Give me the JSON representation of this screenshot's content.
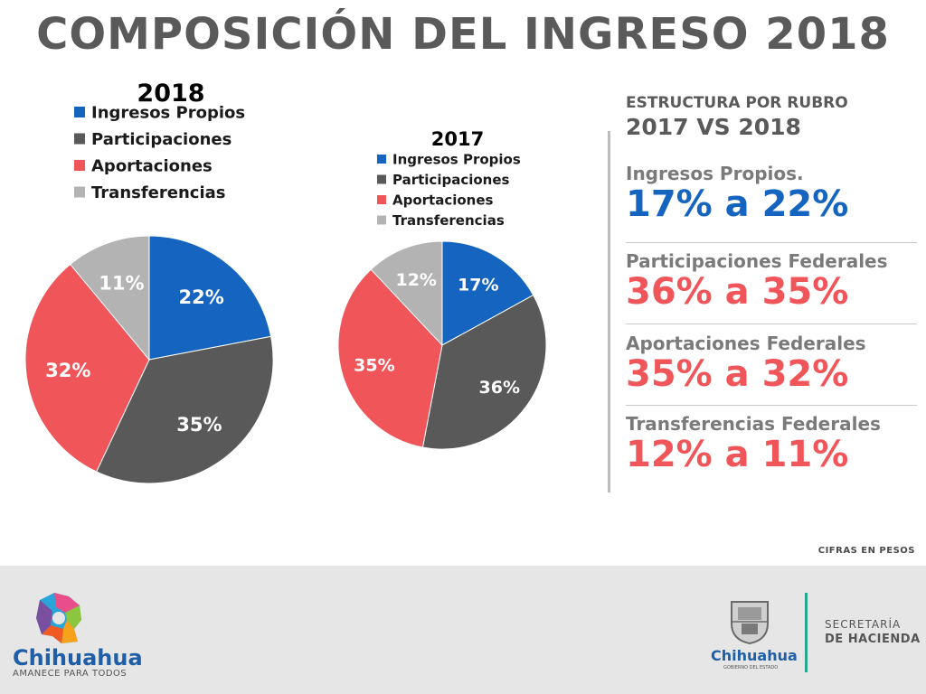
{
  "title": "COMPOSICIÓN DEL INGRESO 2018",
  "colors": {
    "propios": "#1565c0",
    "participaciones": "#595959",
    "aportaciones": "#f0555a",
    "transferencias": "#b3b3b3",
    "accent_blue": "#1565c0",
    "accent_red": "#f0555a"
  },
  "chart_data": [
    {
      "type": "pie",
      "title": "2018",
      "categories": [
        "Ingresos Propios",
        "Participaciones",
        "Aportaciones",
        "Transferencias"
      ],
      "values": [
        22,
        35,
        32,
        11
      ],
      "labels": [
        "22%",
        "35%",
        "32%",
        "11%"
      ],
      "legend": "top-left"
    },
    {
      "type": "pie",
      "title": "2017",
      "categories": [
        "Ingresos Propios",
        "Participaciones",
        "Aportaciones",
        "Transferencias"
      ],
      "values": [
        17,
        36,
        35,
        12
      ],
      "labels": [
        "17%",
        "36%",
        "35%",
        "12%"
      ],
      "legend": "top-left"
    }
  ],
  "rubro": {
    "heading": "ESTRUCTURA POR RUBRO",
    "subheading": "2017 VS 2018",
    "items": [
      {
        "label": "Ingresos Propios.",
        "value": "17% a 22%"
      },
      {
        "label": "Participaciones Federales",
        "value": "36% a 35%"
      },
      {
        "label": "Aportaciones Federales",
        "value": "35% a 32%"
      },
      {
        "label": "Transferencias Federales",
        "value": "12% a 11%"
      }
    ]
  },
  "note": "CIFRAS EN PESOS",
  "footer": {
    "left_logo_text": "Chihuahua",
    "left_logo_sub": "AMANECE PARA TODOS",
    "right_logo_text": "Chihuahua",
    "right_logo_sub": "GOBIERNO DEL ESTADO",
    "secretaria": "SECRETARÍA",
    "hacienda": "DE HACIENDA"
  }
}
